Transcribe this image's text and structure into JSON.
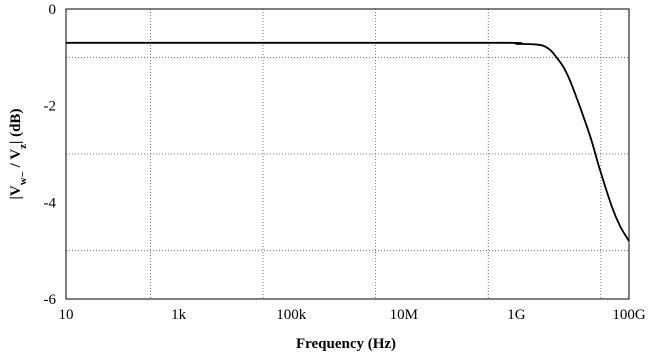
{
  "chart_data": {
    "type": "line",
    "xlabel": "Frequency (Hz)",
    "ylabel": {
      "prefix": "|V",
      "sub1": "w−",
      "mid": " / V",
      "sub2": "z",
      "suffix": "| (dB)"
    },
    "x_scale": "log",
    "xlim": [
      10,
      100000000000
    ],
    "ylim": [
      -6,
      0
    ],
    "x_ticks": [
      {
        "value": 10,
        "label": "10"
      },
      {
        "value": 1000,
        "label": "1k"
      },
      {
        "value": 100000,
        "label": "100k"
      },
      {
        "value": 10000000,
        "label": "10M"
      },
      {
        "value": 1000000000,
        "label": "1G"
      },
      {
        "value": 100000000000,
        "label": "100G"
      }
    ],
    "y_ticks": [
      {
        "value": 0,
        "label": "0"
      },
      {
        "value": -2,
        "label": "-2"
      },
      {
        "value": -4,
        "label": "-4"
      },
      {
        "value": -6,
        "label": "-6"
      }
    ],
    "x_grid": [
      316.2,
      31620,
      3162000,
      316200000,
      31620000000
    ],
    "y_grid": [
      -1,
      -3,
      -5
    ],
    "grid": true,
    "series": [
      {
        "x": [
          10,
          1000000,
          700000000,
          1000000000,
          2000000000,
          3000000000,
          4000000000,
          5000000000,
          7000000000,
          10000000000,
          20000000000,
          30000000000,
          50000000000,
          70000000000,
          100000000000
        ],
        "y": [
          -0.7,
          -0.7,
          -0.7,
          -0.72,
          -0.73,
          -0.76,
          -0.85,
          -0.98,
          -1.22,
          -1.62,
          -2.6,
          -3.3,
          -4.1,
          -4.5,
          -4.8
        ]
      }
    ]
  }
}
